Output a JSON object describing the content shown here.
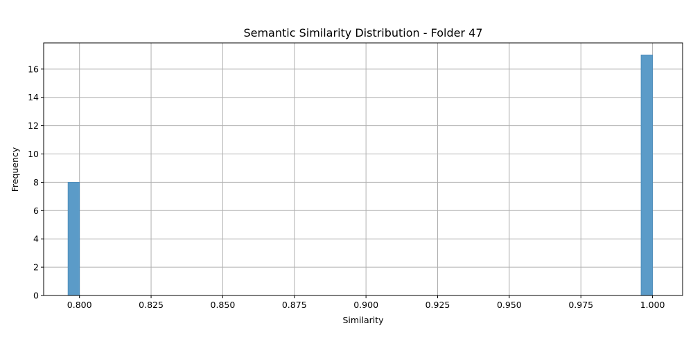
{
  "chart_data": {
    "type": "bar",
    "title": "Semantic Similarity Distribution - Folder 47",
    "xlabel": "Similarity",
    "ylabel": "Frequency",
    "xlim": [
      0.7875,
      1.0105
    ],
    "ylim": [
      0,
      17.85
    ],
    "x_ticks": [
      "0.800",
      "0.825",
      "0.850",
      "0.875",
      "0.900",
      "0.925",
      "0.950",
      "0.975",
      "1.000"
    ],
    "x_tick_values": [
      0.8,
      0.825,
      0.85,
      0.875,
      0.9,
      0.925,
      0.95,
      0.975,
      1.0
    ],
    "y_ticks": [
      "0",
      "2",
      "4",
      "6",
      "8",
      "10",
      "12",
      "14",
      "16"
    ],
    "y_tick_values": [
      0,
      2,
      4,
      6,
      8,
      10,
      12,
      14,
      16
    ],
    "bins": [
      {
        "x0": 0.796,
        "x1": 0.8,
        "value": 8
      },
      {
        "x0": 0.996,
        "x1": 1.0,
        "value": 17
      }
    ],
    "grid": true,
    "bar_color": "#5b9bc8",
    "bar_edge_color": "#4a8ab8"
  }
}
